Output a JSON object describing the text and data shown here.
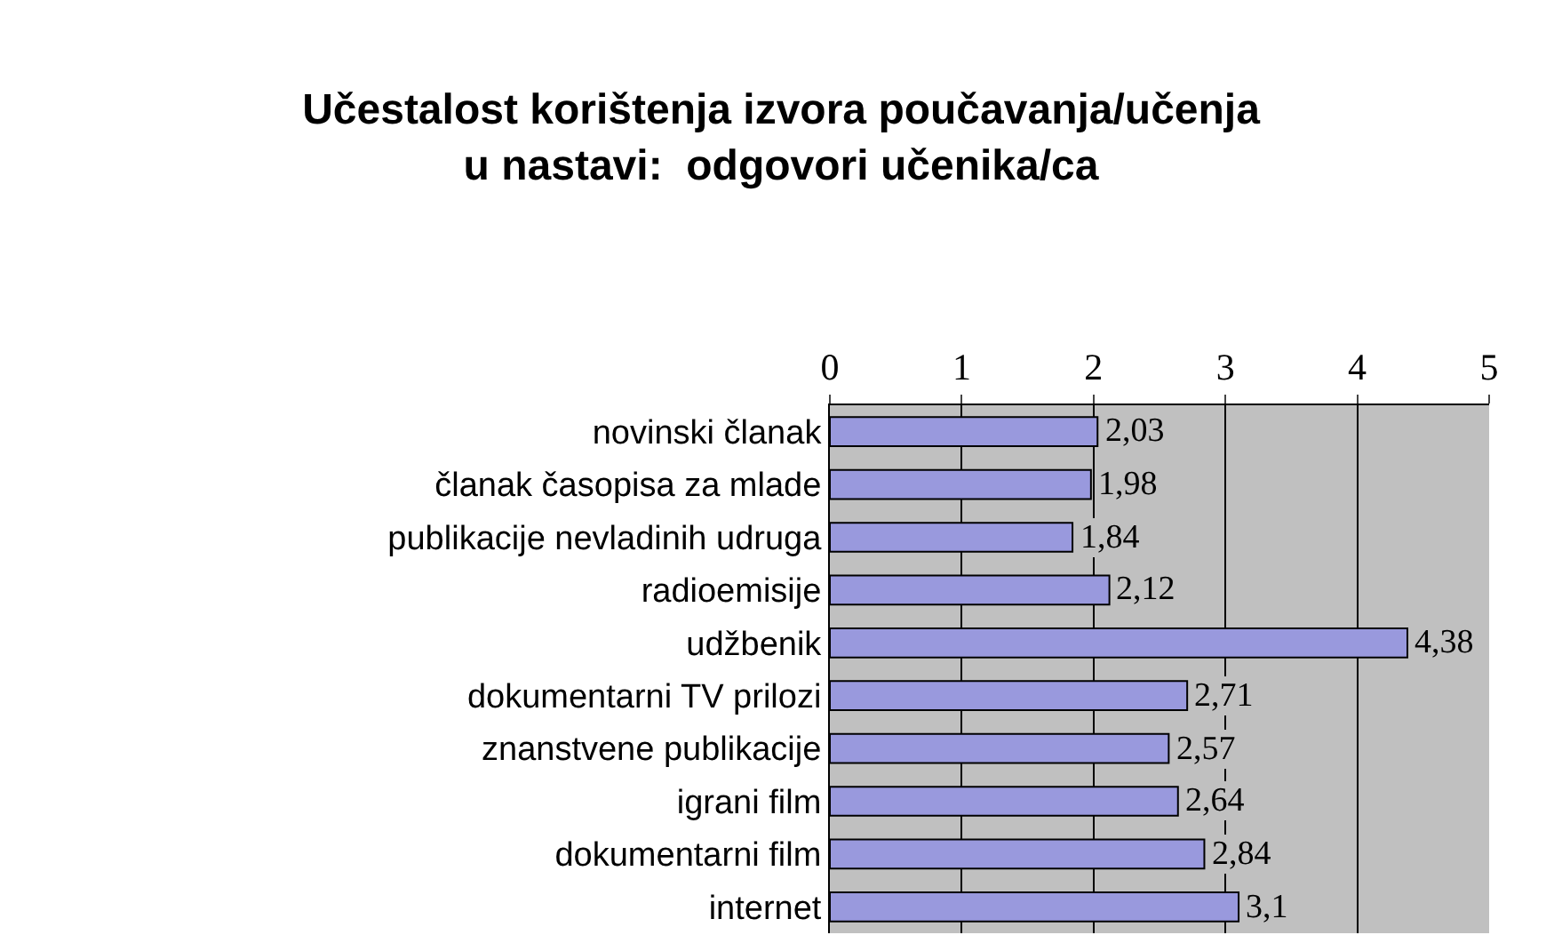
{
  "chart_data": {
    "type": "bar",
    "orientation": "horizontal",
    "title": "Učestalost korištenja izvora poučavanja/učenja\nu nastavi:  odgovori učenika/ca",
    "categories": [
      "novinski članak",
      "članak časopisa za mlade",
      "publikacije nevladinih udruga",
      "radioemisije",
      "udžbenik",
      "dokumentarni TV prilozi",
      "znanstvene publikacije",
      "igrani film",
      "dokumentarni film",
      "internet"
    ],
    "values": [
      2.03,
      1.98,
      1.84,
      2.12,
      4.38,
      2.71,
      2.57,
      2.64,
      2.84,
      3.1
    ],
    "value_labels": [
      "2,03",
      "1,98",
      "1,84",
      "2,12",
      "4,38",
      "2,71",
      "2,57",
      "2,64",
      "2,84",
      "3,1"
    ],
    "color": "#9999dd",
    "xlim": [
      0,
      5
    ],
    "xticks": [
      0,
      1,
      2,
      3,
      4,
      5
    ],
    "grid": "x",
    "legend": false
  }
}
